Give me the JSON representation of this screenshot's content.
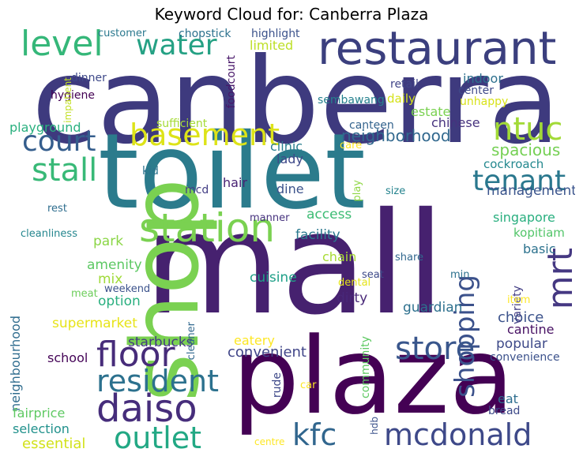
{
  "title": "Keyword Cloud for: Canberra Plaza",
  "colors": {
    "dark_purple": "#440154",
    "indigo": "#472d7b",
    "blue": "#3b528b",
    "slate": "#2c728e",
    "teal": "#21918c",
    "green": "#28ae80",
    "emerald": "#5ec962",
    "lime": "#addc30",
    "yellow": "#fde725"
  },
  "words": [
    {
      "id": "canberra",
      "text": "canberra",
      "color": "#3e3a7e"
    },
    {
      "id": "toilet",
      "text": "toilet",
      "color": "#2b7b8c"
    },
    {
      "id": "mall",
      "text": "mall",
      "color": "#46216f"
    },
    {
      "id": "plaza",
      "text": "plaza",
      "color": "#440154"
    },
    {
      "id": "shop",
      "text": "shop",
      "color": "#7ad151"
    },
    {
      "id": "restaurant",
      "text": "restaurant",
      "color": "#3b3f7e"
    },
    {
      "id": "level",
      "text": "level",
      "color": "#35b779"
    },
    {
      "id": "water",
      "text": "water",
      "color": "#25a184"
    },
    {
      "id": "station",
      "text": "station",
      "color": "#7ad151"
    },
    {
      "id": "basement",
      "text": "basement",
      "color": "#dde318"
    },
    {
      "id": "ntuc",
      "text": "ntuc",
      "color": "#a2da37"
    },
    {
      "id": "court",
      "text": "court",
      "color": "#355e8d"
    },
    {
      "id": "stall",
      "text": "stall",
      "color": "#38b977"
    },
    {
      "id": "mrt",
      "text": "mrt",
      "color": "#453882"
    },
    {
      "id": "tenant",
      "text": "tenant",
      "color": "#2a788e"
    },
    {
      "id": "shopping",
      "text": "shopping",
      "color": "#3b518b"
    },
    {
      "id": "neighborhood",
      "text": "neighborhood",
      "color": "#31688e"
    },
    {
      "id": "floor",
      "text": "floor",
      "color": "#472c7a"
    },
    {
      "id": "resident",
      "text": "resident",
      "color": "#2c718e"
    },
    {
      "id": "daiso",
      "text": "daiso",
      "color": "#462d7b"
    },
    {
      "id": "store",
      "text": "store",
      "color": "#39568c"
    },
    {
      "id": "outlet",
      "text": "outlet",
      "color": "#22a884"
    },
    {
      "id": "kfc",
      "text": "kfc",
      "color": "#31668e"
    },
    {
      "id": "mcdonald",
      "text": "mcdonald",
      "color": "#3e4989"
    },
    {
      "id": "spacious",
      "text": "spacious",
      "color": "#75d054"
    },
    {
      "id": "cockroach",
      "text": "cockroach",
      "color": "#23888e"
    },
    {
      "id": "management",
      "text": "management",
      "color": "#3a548c"
    },
    {
      "id": "singapore",
      "text": "singapore",
      "color": "#29af7f"
    },
    {
      "id": "kopitiam",
      "text": "kopitiam",
      "color": "#52c569"
    },
    {
      "id": "basic",
      "text": "basic",
      "color": "#2c728e"
    },
    {
      "id": "chinese",
      "text": "chinese",
      "color": "#46327e"
    },
    {
      "id": "estate",
      "text": "estate",
      "color": "#7ad151"
    },
    {
      "id": "facility",
      "text": "facility",
      "color": "#2a788e"
    },
    {
      "id": "access",
      "text": "access",
      "color": "#3dbc74"
    },
    {
      "id": "chain",
      "text": "chain",
      "color": "#a8db34"
    },
    {
      "id": "guardian",
      "text": "guardian",
      "color": "#2d708e"
    },
    {
      "id": "dirty",
      "text": "dirty",
      "color": "#482878"
    },
    {
      "id": "cuisine",
      "text": "cuisine",
      "color": "#1fa088"
    },
    {
      "id": "choice",
      "text": "choice",
      "color": "#3b528b"
    },
    {
      "id": "cantine",
      "text": "cantine",
      "color": "#471063"
    },
    {
      "id": "popular",
      "text": "popular",
      "color": "#3e4a89"
    },
    {
      "id": "convenience",
      "text": "convenience",
      "color": "#3b518b"
    },
    {
      "id": "eat",
      "text": "eat",
      "color": "#2e6e8e"
    },
    {
      "id": "bread",
      "text": "bread",
      "color": "#3e4a89"
    },
    {
      "id": "supermarket",
      "text": "supermarket",
      "color": "#e7e419"
    },
    {
      "id": "option",
      "text": "option",
      "color": "#29af7f"
    },
    {
      "id": "mix",
      "text": "mix",
      "color": "#a0da39"
    },
    {
      "id": "amenity",
      "text": "amenity",
      "color": "#5cc863"
    },
    {
      "id": "park",
      "text": "park",
      "color": "#8bd646"
    },
    {
      "id": "neighbourhood",
      "text": "neighbourhood",
      "color": "#2f6c8e"
    },
    {
      "id": "starbucks",
      "text": "starbucks",
      "color": "#443a83"
    },
    {
      "id": "school",
      "text": "school",
      "color": "#450457"
    },
    {
      "id": "convenient",
      "text": "convenient",
      "color": "#404588"
    },
    {
      "id": "eatery",
      "text": "eatery",
      "color": "#fde725"
    },
    {
      "id": "fairprice",
      "text": "fairprice",
      "color": "#5ec962"
    },
    {
      "id": "selection",
      "text": "selection",
      "color": "#21918c"
    },
    {
      "id": "essential",
      "text": "essential",
      "color": "#d2e21b"
    },
    {
      "id": "playground",
      "text": "playground",
      "color": "#2ab07f"
    },
    {
      "id": "sufficient",
      "text": "sufficient",
      "color": "#a5db36"
    },
    {
      "id": "clinic",
      "text": "clinic",
      "color": "#287d8e"
    },
    {
      "id": "lady",
      "text": "lady",
      "color": "#3e4989"
    },
    {
      "id": "dine",
      "text": "dine",
      "color": "#3b528b"
    },
    {
      "id": "hair",
      "text": "hair",
      "color": "#482173"
    },
    {
      "id": "kid",
      "text": "kid",
      "color": "#2c738e"
    },
    {
      "id": "mcd",
      "text": "mcd",
      "color": "#433e85"
    },
    {
      "id": "rest",
      "text": "rest",
      "color": "#2e6d8e"
    },
    {
      "id": "cleanliness",
      "text": "cleanliness",
      "color": "#24868e"
    },
    {
      "id": "manner",
      "text": "manner",
      "color": "#46327e"
    },
    {
      "id": "weekend",
      "text": "weekend",
      "color": "#3b528b"
    },
    {
      "id": "meat",
      "text": "meat",
      "color": "#6ccd5a"
    },
    {
      "id": "cleaner",
      "text": "cleaner",
      "color": "#31688e"
    },
    {
      "id": "seat",
      "text": "seat",
      "color": "#3e4a89"
    },
    {
      "id": "dental",
      "text": "dental",
      "color": "#e5e419"
    },
    {
      "id": "share",
      "text": "share",
      "color": "#31678e"
    },
    {
      "id": "min",
      "text": "min",
      "color": "#2c718e"
    },
    {
      "id": "variety",
      "text": "variety",
      "color": "#433e85"
    },
    {
      "id": "item",
      "text": "item",
      "color": "#fde725"
    },
    {
      "id": "size",
      "text": "size",
      "color": "#25838e"
    },
    {
      "id": "play",
      "text": "play",
      "color": "#8fd744"
    },
    {
      "id": "care",
      "text": "care",
      "color": "#fde725"
    },
    {
      "id": "canteen",
      "text": "canteen",
      "color": "#33638d"
    },
    {
      "id": "customer",
      "text": "customer",
      "color": "#2a788e"
    },
    {
      "id": "chopstick",
      "text": "chopstick",
      "color": "#2c718e"
    },
    {
      "id": "highlight",
      "text": "highlight",
      "color": "#3b528b"
    },
    {
      "id": "limited",
      "text": "limited",
      "color": "#bddf26"
    },
    {
      "id": "dinner",
      "text": "dinner",
      "color": "#3e4989"
    },
    {
      "id": "foodcourt",
      "text": "foodcourt",
      "color": "#481769"
    },
    {
      "id": "hygiene",
      "text": "hygiene",
      "color": "#440154"
    },
    {
      "id": "impatient",
      "text": "impatient",
      "color": "#c2df23"
    },
    {
      "id": "retail",
      "text": "retail",
      "color": "#404588"
    },
    {
      "id": "indoor",
      "text": "indoor",
      "color": "#2d708e"
    },
    {
      "id": "sembawang",
      "text": "sembawang",
      "color": "#26818e"
    },
    {
      "id": "center",
      "text": "center",
      "color": "#3e4989"
    },
    {
      "id": "unhappy",
      "text": "unhappy",
      "color": "#d8e219"
    },
    {
      "id": "daily",
      "text": "daily",
      "color": "#d5e21a"
    },
    {
      "id": "community",
      "text": "community",
      "color": "#5ec962"
    },
    {
      "id": "rude",
      "text": "rude",
      "color": "#3e4989"
    },
    {
      "id": "car",
      "text": "car",
      "color": "#fde725"
    },
    {
      "id": "hdb",
      "text": "hdb",
      "color": "#3b528b"
    },
    {
      "id": "centre",
      "text": "centre",
      "color": "#fde725"
    }
  ]
}
